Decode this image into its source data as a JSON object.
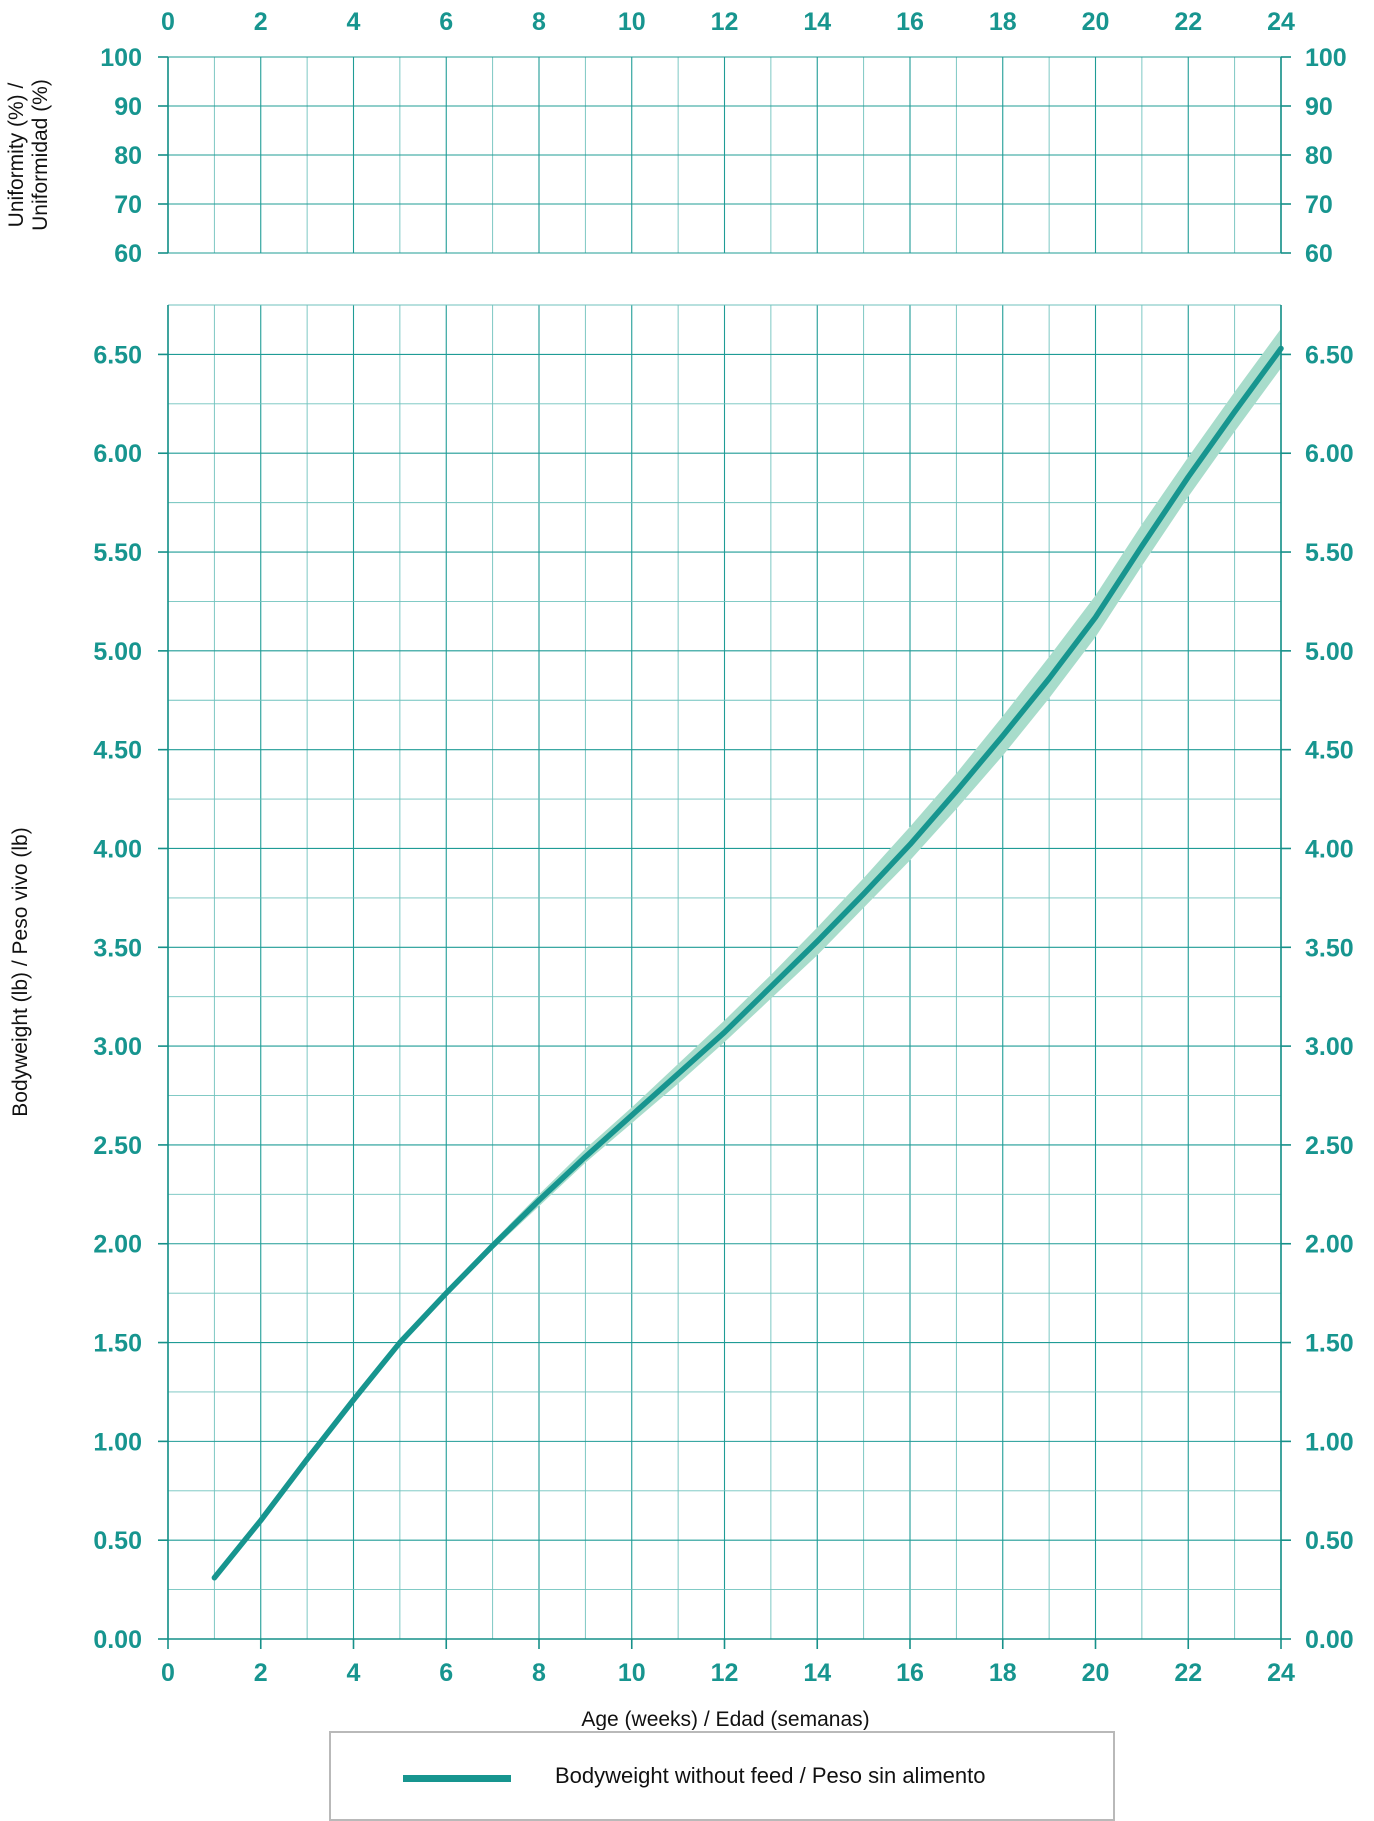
{
  "chart_data": [
    {
      "type": "line",
      "panel": "uniformity",
      "title": "",
      "xlabel": "",
      "ylabel": "Uniformity (%) / Uniformidad (%)",
      "ylabel_lines": [
        "Uniformity (%) /",
        "Uniformidad (%)"
      ],
      "xlim": [
        0,
        24
      ],
      "ylim": [
        60,
        100
      ],
      "x_ticks": [
        0,
        2,
        4,
        6,
        8,
        10,
        12,
        14,
        16,
        18,
        20,
        22,
        24
      ],
      "y_ticks": [
        "60",
        "70",
        "80",
        "90",
        "100"
      ],
      "y_tick_values": [
        60,
        70,
        80,
        90,
        100
      ],
      "grid": true,
      "series": []
    },
    {
      "type": "line",
      "panel": "bodyweight",
      "title": "",
      "xlabel": "Age (weeks) / Edad (semanas)",
      "ylabel": "Bodyweight (lb) / Peso vivo (lb)",
      "xlim": [
        0,
        24
      ],
      "ylim": [
        0,
        6.75
      ],
      "x_ticks": [
        0,
        2,
        4,
        6,
        8,
        10,
        12,
        14,
        16,
        18,
        20,
        22,
        24
      ],
      "y_ticks": [
        "0.00",
        "0.50",
        "1.00",
        "1.50",
        "2.00",
        "2.50",
        "3.00",
        "3.50",
        "4.00",
        "4.50",
        "5.00",
        "5.50",
        "6.00",
        "6.50"
      ],
      "y_tick_values": [
        0,
        0.5,
        1,
        1.5,
        2,
        2.5,
        3,
        3.5,
        4,
        4.5,
        5,
        5.5,
        6,
        6.5
      ],
      "grid": true,
      "legend_position": "bottom",
      "series": [
        {
          "name": "Bodyweight without feed / Peso sin alimento",
          "color": "#17958f",
          "x": [
            1,
            2,
            3,
            4,
            5,
            6,
            7,
            8,
            9,
            10,
            11,
            12,
            13,
            14,
            15,
            16,
            17,
            18,
            19,
            20,
            21,
            22,
            23,
            24
          ],
          "values": [
            0.31,
            0.6,
            0.91,
            1.21,
            1.5,
            1.75,
            1.99,
            2.22,
            2.44,
            2.65,
            2.86,
            3.07,
            3.3,
            3.53,
            3.77,
            4.02,
            4.29,
            4.57,
            4.86,
            5.17,
            5.53,
            5.88,
            6.21,
            6.53
          ],
          "band_color": "#a8dccb",
          "band_lower": [
            0.31,
            0.6,
            0.91,
            1.21,
            1.5,
            1.74,
            1.97,
            2.19,
            2.41,
            2.61,
            2.81,
            3.02,
            3.24,
            3.46,
            3.7,
            3.94,
            4.2,
            4.47,
            4.76,
            5.07,
            5.43,
            5.78,
            6.11,
            6.43
          ],
          "band_upper": [
            0.31,
            0.6,
            0.91,
            1.21,
            1.5,
            1.76,
            2.01,
            2.25,
            2.48,
            2.69,
            2.91,
            3.13,
            3.36,
            3.6,
            3.85,
            4.11,
            4.38,
            4.67,
            4.97,
            5.28,
            5.64,
            5.98,
            6.31,
            6.63
          ]
        }
      ]
    }
  ]
}
